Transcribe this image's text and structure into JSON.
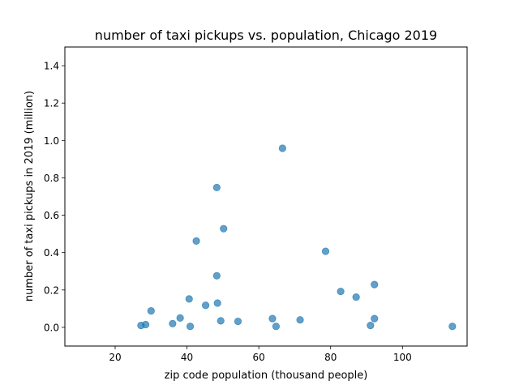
{
  "chart_data": {
    "type": "scatter",
    "title": "number of taxi pickups vs. population, Chicago 2019",
    "xlabel": "zip code population (thousand people)",
    "ylabel": "number of taxi pickups in 2019 (million)",
    "xlim": [
      6,
      118
    ],
    "ylim": [
      -0.1,
      1.5
    ],
    "xticks": [
      20,
      40,
      60,
      80,
      100
    ],
    "yticks": [
      0.0,
      0.2,
      0.4,
      0.6,
      0.8,
      1.0,
      1.2,
      1.4
    ],
    "xtick_labels": [
      "20",
      "40",
      "60",
      "80",
      "100"
    ],
    "ytick_labels": [
      "0.0",
      "0.2",
      "0.4",
      "0.6",
      "0.8",
      "1.0",
      "1.2",
      "1.4"
    ],
    "grid": false,
    "marker_color": "#1f77b4",
    "marker_alpha": 0.7,
    "points": [
      {
        "x": 27.2,
        "y": 0.01
      },
      {
        "x": 28.5,
        "y": 0.015
      },
      {
        "x": 30.0,
        "y": 0.088
      },
      {
        "x": 36.0,
        "y": 0.02
      },
      {
        "x": 38.1,
        "y": 0.05
      },
      {
        "x": 40.6,
        "y": 0.152
      },
      {
        "x": 40.9,
        "y": 0.005
      },
      {
        "x": 42.6,
        "y": 0.462
      },
      {
        "x": 45.2,
        "y": 0.118
      },
      {
        "x": 48.3,
        "y": 0.748
      },
      {
        "x": 48.3,
        "y": 0.276
      },
      {
        "x": 48.5,
        "y": 0.13
      },
      {
        "x": 49.4,
        "y": 0.035
      },
      {
        "x": 50.2,
        "y": 0.528
      },
      {
        "x": 54.2,
        "y": 0.032
      },
      {
        "x": 63.8,
        "y": 0.047
      },
      {
        "x": 64.8,
        "y": 0.005
      },
      {
        "x": 66.6,
        "y": 0.958
      },
      {
        "x": 71.5,
        "y": 0.04
      },
      {
        "x": 78.6,
        "y": 0.407
      },
      {
        "x": 82.8,
        "y": 0.192
      },
      {
        "x": 87.1,
        "y": 0.162
      },
      {
        "x": 91.1,
        "y": 0.01
      },
      {
        "x": 92.2,
        "y": 0.229
      },
      {
        "x": 92.2,
        "y": 0.047
      },
      {
        "x": 113.9,
        "y": 0.005
      }
    ]
  }
}
